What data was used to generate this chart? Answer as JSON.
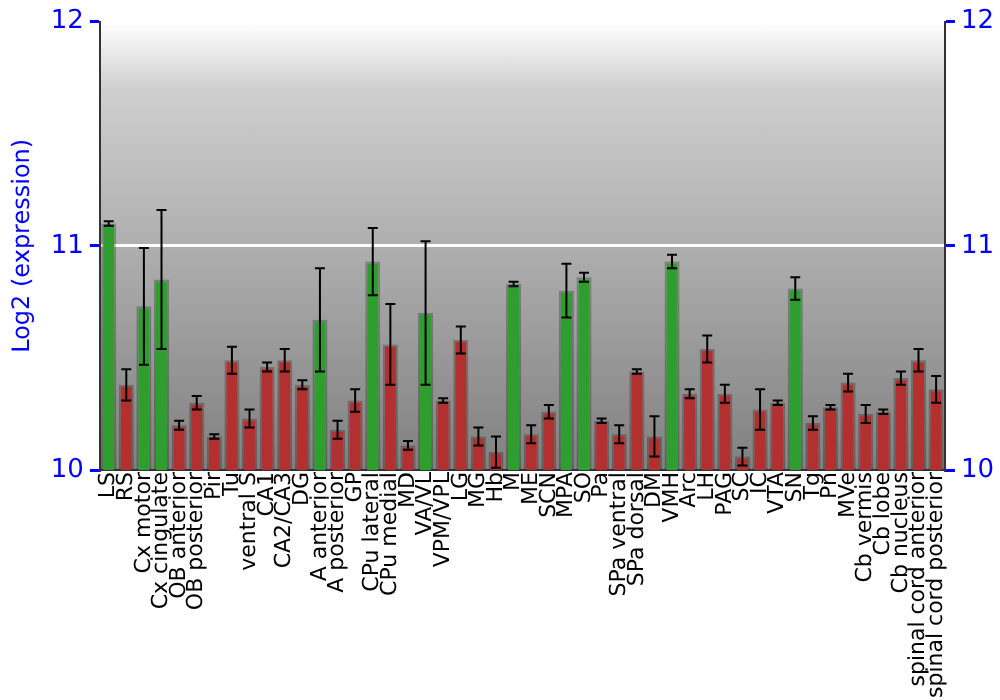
{
  "chart_data": {
    "type": "bar",
    "ylabel": "Log2 (expression)",
    "categories": [
      "LS",
      "RS",
      "Cx motor",
      "Cx cingulate",
      "OB anterior",
      "OB posterior",
      "Pir",
      "Tu",
      "ventral S",
      "CA1",
      "CA2/CA3",
      "DG",
      "A anterior",
      "A posterior",
      "GP",
      "CPu lateral",
      "CPu medial",
      "MD",
      "VA/VL",
      "VPM/VPL",
      "LG",
      "MG",
      "Hb",
      "M",
      "ME",
      "SCN",
      "MPA",
      "SO",
      "Pa",
      "SPa ventral",
      "SPa dorsal",
      "DM",
      "VMH",
      "Arc",
      "LH",
      "PAG",
      "SC",
      "IC",
      "VTA",
      "SN",
      "Tg",
      "Pn",
      "MVe",
      "Cb vermis",
      "Cb lobe",
      "Cb nucleus",
      "spinal cord anterior",
      "spinal cord posterior"
    ],
    "values": [
      11.1,
      10.38,
      10.73,
      10.85,
      10.2,
      10.3,
      10.15,
      10.49,
      10.23,
      10.46,
      10.49,
      10.38,
      10.67,
      10.18,
      10.31,
      10.93,
      10.56,
      10.11,
      10.7,
      10.31,
      10.58,
      10.15,
      10.08,
      10.83,
      10.16,
      10.26,
      10.8,
      10.86,
      10.22,
      10.16,
      10.44,
      10.15,
      10.93,
      10.34,
      10.54,
      10.34,
      10.06,
      10.27,
      10.3,
      10.81,
      10.21,
      10.28,
      10.39,
      10.25,
      10.26,
      10.41,
      10.49,
      10.36
    ],
    "errors": [
      0.01,
      0.07,
      0.26,
      0.31,
      0.02,
      0.03,
      0.01,
      0.06,
      0.04,
      0.02,
      0.05,
      0.02,
      0.23,
      0.04,
      0.05,
      0.15,
      0.18,
      0.02,
      0.32,
      0.01,
      0.06,
      0.04,
      0.07,
      0.01,
      0.04,
      0.03,
      0.12,
      0.02,
      0.01,
      0.04,
      0.01,
      0.09,
      0.03,
      0.02,
      0.06,
      0.04,
      0.04,
      0.09,
      0.01,
      0.05,
      0.03,
      0.01,
      0.04,
      0.04,
      0.01,
      0.03,
      0.05,
      0.06
    ],
    "colors": [
      "#2e9e2e",
      "#b33030",
      "#2e9e2e",
      "#2e9e2e",
      "#b33030",
      "#b33030",
      "#b33030",
      "#b33030",
      "#b33030",
      "#b33030",
      "#b33030",
      "#b33030",
      "#2e9e2e",
      "#b33030",
      "#b33030",
      "#2e9e2e",
      "#b33030",
      "#b33030",
      "#2e9e2e",
      "#b33030",
      "#b33030",
      "#b33030",
      "#b33030",
      "#2e9e2e",
      "#b33030",
      "#b33030",
      "#2e9e2e",
      "#2e9e2e",
      "#b33030",
      "#b33030",
      "#b33030",
      "#b33030",
      "#2e9e2e",
      "#b33030",
      "#b33030",
      "#b33030",
      "#b33030",
      "#b33030",
      "#b33030",
      "#2e9e2e",
      "#b33030",
      "#b33030",
      "#b33030",
      "#b33030",
      "#b33030",
      "#b33030",
      "#b33030",
      "#b33030"
    ],
    "ylim": [
      10,
      12
    ],
    "yticks": [
      10,
      11,
      12
    ],
    "y2lim": [
      10,
      12
    ],
    "y2ticks": [
      10,
      11,
      12
    ],
    "grid": "y",
    "legend": false
  }
}
